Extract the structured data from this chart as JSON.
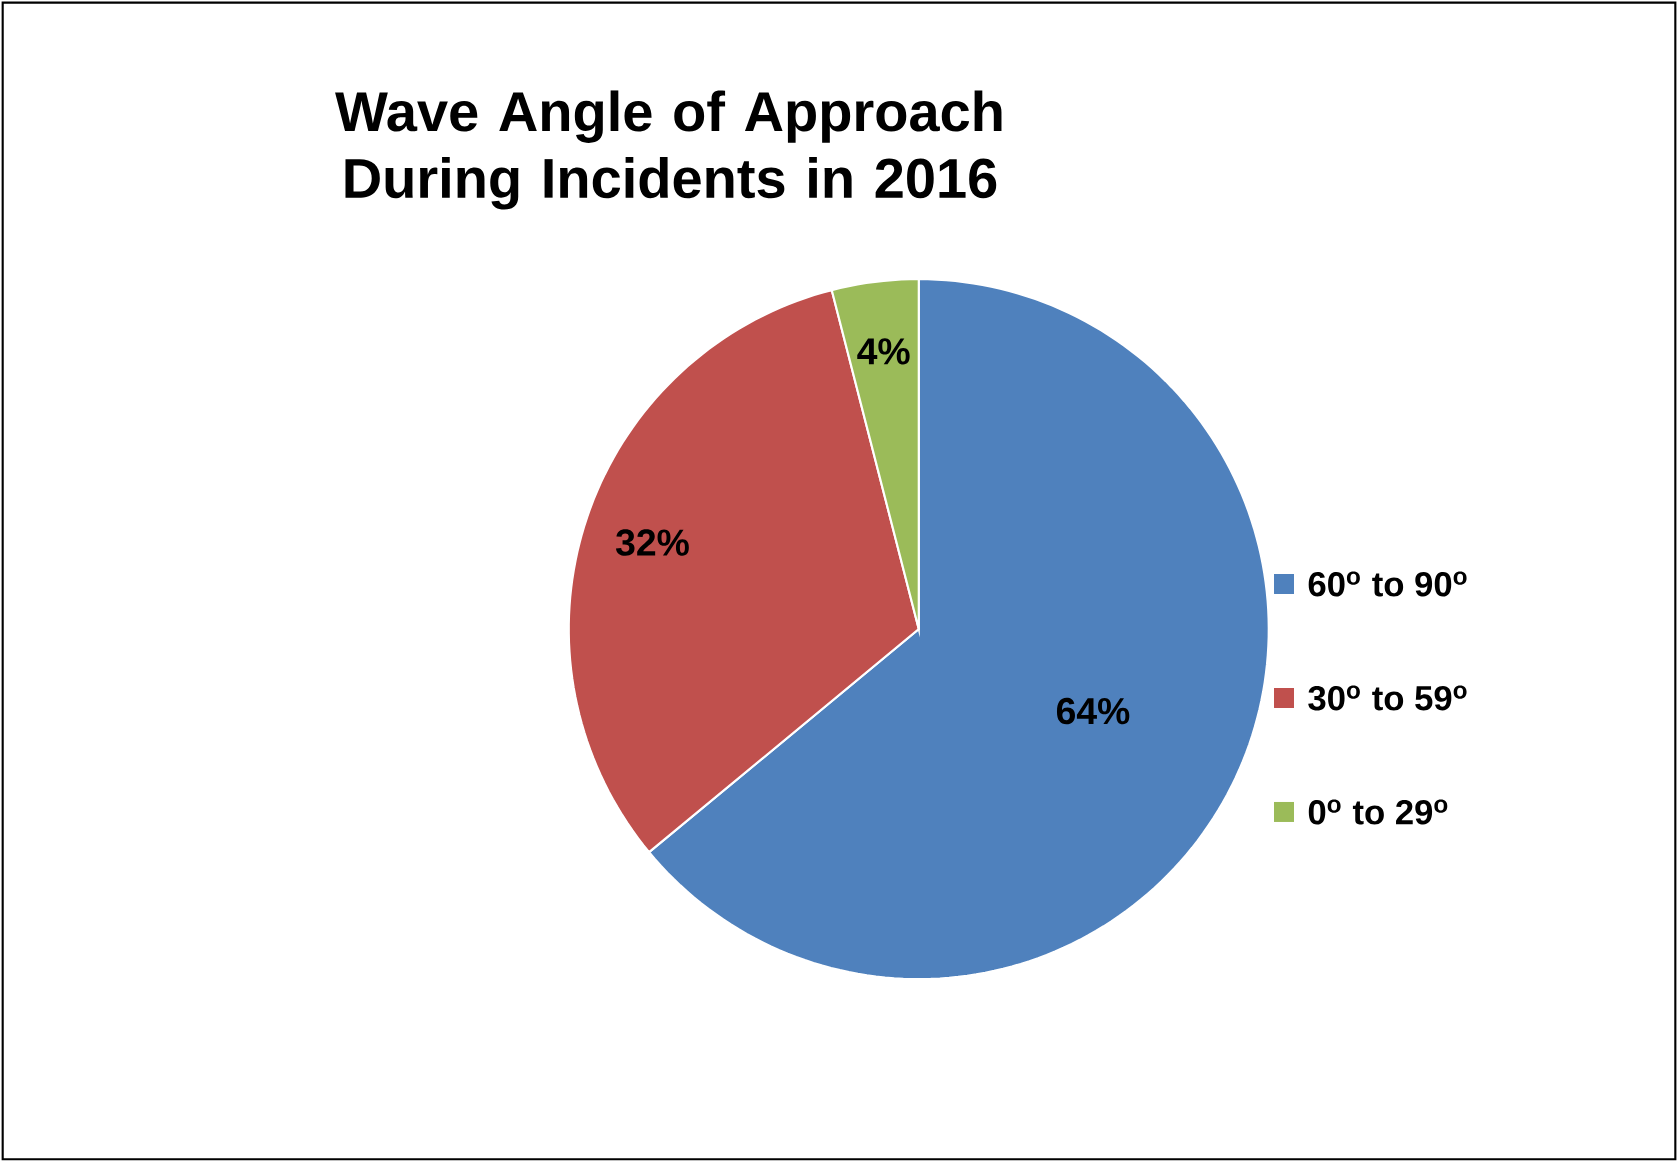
{
  "chart_data": {
    "type": "pie",
    "title": "Wave Angle of Approach During Incidents in 2016",
    "categories": [
      "60$^{o}$ to 90$^{o}$",
      "30$^{o}$ to 59$^{o}$",
      "0$^{o}$ to 29$^{o}$"
    ],
    "values": [
      64,
      32,
      4
    ],
    "value_labels": [
      "64%",
      "32%",
      "4%"
    ],
    "colors": [
      "#4f81bd",
      "#c0504d",
      "#9bbb59"
    ],
    "legend": "right"
  }
}
